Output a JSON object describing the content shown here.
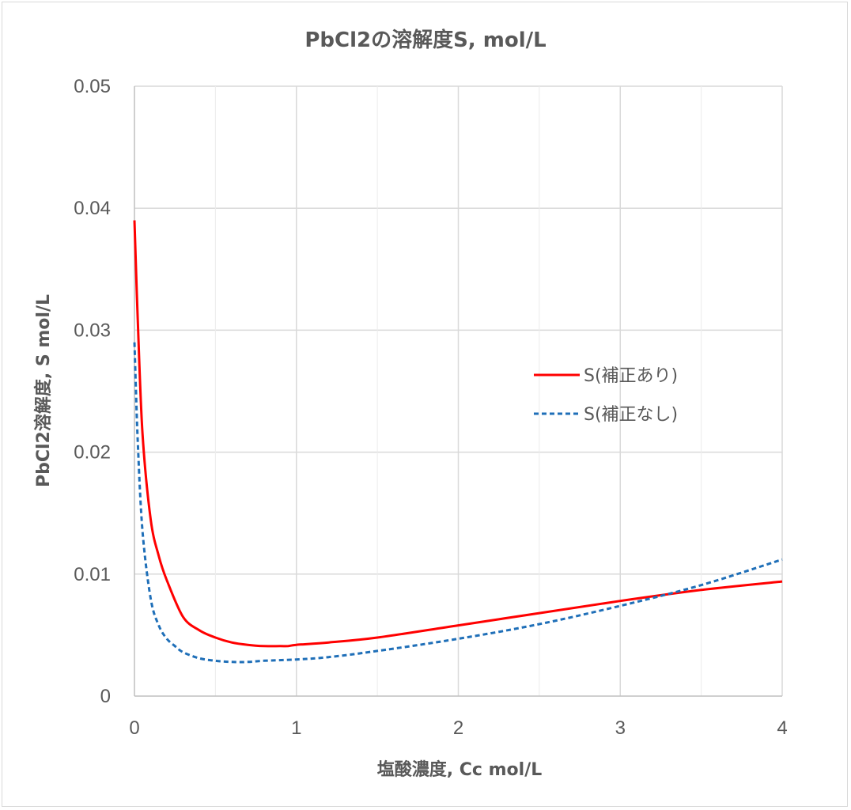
{
  "chart_data": {
    "type": "line",
    "title": "PbCl2の溶解度S, mol/L",
    "xlabel": "塩酸濃度, Cc mol/L",
    "ylabel": "PbCl2溶解度, S mol/L",
    "xlim": [
      0,
      4
    ],
    "ylim": [
      0,
      0.05
    ],
    "x_ticks": [
      "0",
      "1",
      "2",
      "3",
      "4"
    ],
    "y_ticks": [
      "0",
      "0.01",
      "0.02",
      "0.03",
      "0.04",
      "0.05"
    ],
    "x_tick_values": [
      0,
      1,
      2,
      3,
      4
    ],
    "y_tick_values": [
      0,
      0.01,
      0.02,
      0.03,
      0.04,
      0.05
    ],
    "x_minor_gridlines": [
      0.5,
      1.5,
      2.5,
      3.5
    ],
    "grid": true,
    "legend_position": "right",
    "series": [
      {
        "name": "S(補正あり)",
        "color": "#ff0000",
        "style": "solid",
        "x": [
          0,
          0.02,
          0.05,
          0.1,
          0.15,
          0.2,
          0.3,
          0.4,
          0.5,
          0.6,
          0.7,
          0.8,
          0.9,
          0.95,
          1.0,
          1.2,
          1.5,
          2.0,
          2.5,
          3.0,
          3.5,
          4.0
        ],
        "y": [
          0.039,
          0.031,
          0.0215,
          0.0145,
          0.0115,
          0.0095,
          0.0065,
          0.0054,
          0.0048,
          0.0044,
          0.0042,
          0.0041,
          0.0041,
          0.0041,
          0.0042,
          0.0044,
          0.0048,
          0.0058,
          0.0068,
          0.0078,
          0.0087,
          0.0094
        ]
      },
      {
        "name": "S(補正なし)",
        "color": "#1f6fb8",
        "style": "dashed",
        "x": [
          0,
          0.02,
          0.05,
          0.1,
          0.15,
          0.2,
          0.25,
          0.3,
          0.4,
          0.5,
          0.6,
          0.7,
          0.8,
          1.0,
          1.2,
          1.5,
          2.0,
          2.5,
          3.0,
          3.5,
          4.0
        ],
        "y": [
          0.029,
          0.021,
          0.0135,
          0.008,
          0.0058,
          0.0047,
          0.0041,
          0.0036,
          0.0031,
          0.0029,
          0.0028,
          0.0028,
          0.0029,
          0.003,
          0.0032,
          0.0037,
          0.0047,
          0.0059,
          0.0074,
          0.0091,
          0.0112
        ]
      }
    ]
  }
}
